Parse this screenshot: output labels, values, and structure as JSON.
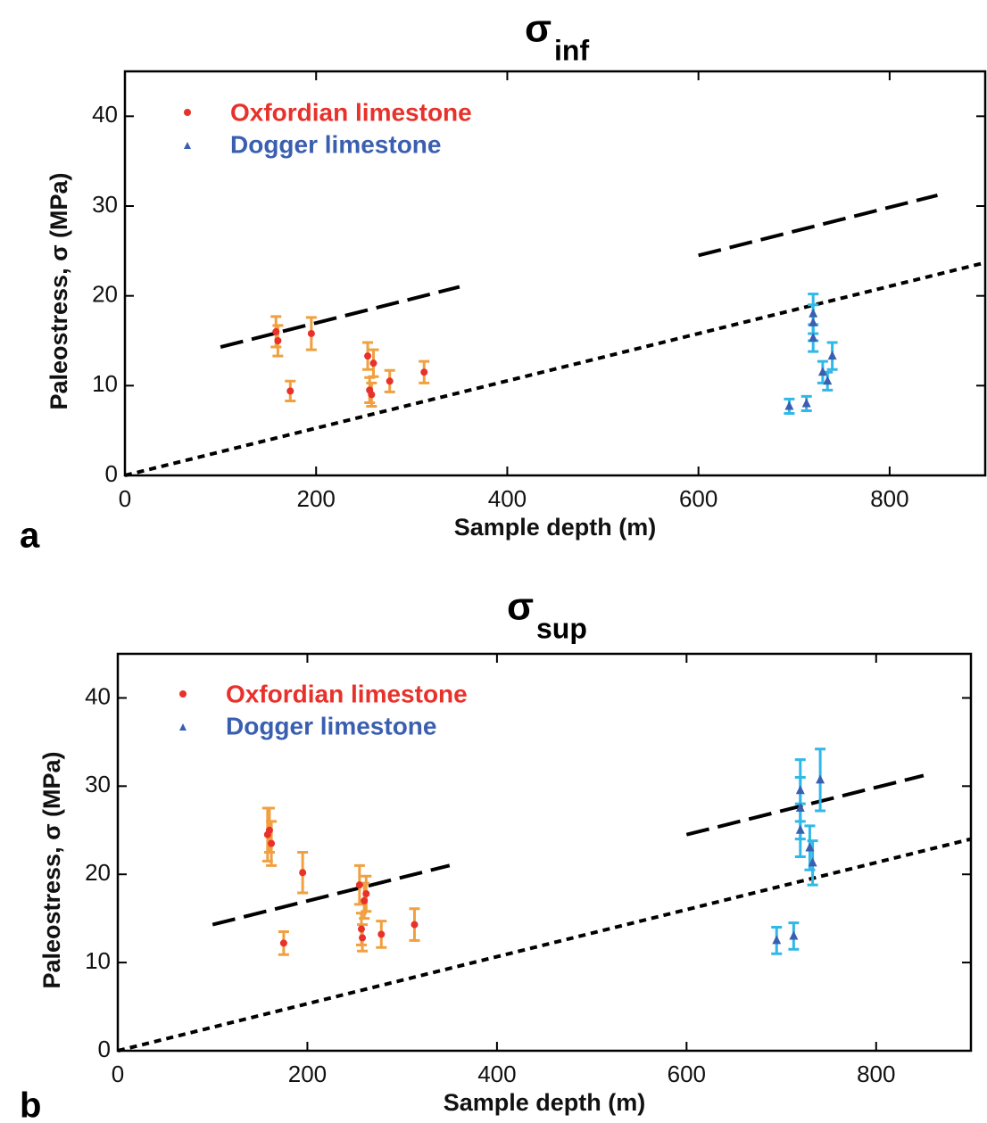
{
  "chart_data": [
    {
      "type": "scatter",
      "panel_label": "a",
      "title": "σ",
      "title_subscript": "inf",
      "x_label": "Sample depth (m)",
      "y_label": "Paleostress, σ (MPa)",
      "xlim": [
        0,
        900
      ],
      "ylim": [
        0,
        45
      ],
      "xticks": [
        0,
        200,
        400,
        600,
        800
      ],
      "yticks": [
        0,
        10,
        20,
        30,
        40
      ],
      "legend": "top-left",
      "series": [
        {
          "name": "Oxfordian limestone",
          "color": "#e8312a",
          "errorbar_color": "#f0a040",
          "marker": "circle",
          "x": [
            158,
            160,
            195,
            173,
            254,
            256,
            258,
            260,
            277,
            313
          ],
          "values": [
            16.0,
            15.0,
            15.8,
            9.4,
            13.3,
            9.5,
            9.0,
            12.5,
            10.5,
            11.5
          ],
          "errors": [
            1.7,
            1.7,
            1.8,
            1.1,
            1.5,
            1.4,
            1.3,
            1.5,
            1.2,
            1.2
          ]
        },
        {
          "name": "Dogger limestone",
          "color": "#3a5fb0",
          "errorbar_color": "#30b8e8",
          "marker": "triangle",
          "x": [
            695,
            713,
            720,
            720,
            720,
            730,
            735,
            740
          ],
          "values": [
            7.7,
            8.0,
            18.0,
            17.0,
            15.3,
            11.5,
            10.5,
            13.3
          ],
          "errors": [
            0.8,
            0.8,
            2.2,
            2.0,
            1.5,
            1.2,
            1.0,
            1.5
          ]
        }
      ],
      "lines": [
        {
          "x": [
            0,
            900
          ],
          "values": [
            0,
            23.7
          ],
          "dash": "short"
        },
        {
          "x": [
            100,
            350
          ],
          "values": [
            14.3,
            21.0
          ],
          "dash": "long"
        },
        {
          "x": [
            600,
            850
          ],
          "values": [
            24.5,
            31.2
          ],
          "dash": "long"
        }
      ]
    },
    {
      "type": "scatter",
      "panel_label": "b",
      "title": "σ",
      "title_subscript": "sup",
      "x_label": "Sample depth (m)",
      "y_label": "Paleostress, σ (MPa)",
      "xlim": [
        0,
        900
      ],
      "ylim": [
        0,
        45
      ],
      "xticks": [
        0,
        200,
        400,
        600,
        800
      ],
      "yticks": [
        0,
        10,
        20,
        30,
        40
      ],
      "legend": "top-left",
      "series": [
        {
          "name": "Oxfordian limestone",
          "color": "#e8312a",
          "errorbar_color": "#f0a040",
          "marker": "circle",
          "x": [
            158,
            160,
            162,
            175,
            195,
            255,
            257,
            258,
            260,
            262,
            278,
            313
          ],
          "values": [
            24.5,
            25.0,
            23.5,
            12.2,
            20.2,
            18.8,
            13.8,
            12.8,
            17.0,
            17.8,
            13.2,
            14.3
          ],
          "errors": [
            3.0,
            2.5,
            2.5,
            1.3,
            2.3,
            2.2,
            1.8,
            1.5,
            2.0,
            2.0,
            1.5,
            1.8
          ]
        },
        {
          "name": "Dogger limestone",
          "color": "#3a5fb0",
          "errorbar_color": "#30b8e8",
          "marker": "triangle",
          "x": [
            695,
            713,
            720,
            720,
            720,
            730,
            733,
            741
          ],
          "values": [
            12.5,
            13.0,
            29.5,
            27.5,
            25.0,
            23.0,
            21.3,
            30.7
          ],
          "errors": [
            1.5,
            1.5,
            3.5,
            3.5,
            3.0,
            2.5,
            2.5,
            3.5
          ]
        }
      ],
      "lines": [
        {
          "x": [
            0,
            900
          ],
          "values": [
            0,
            24.0
          ],
          "dash": "short"
        },
        {
          "x": [
            100,
            350
          ],
          "values": [
            14.3,
            21.0
          ],
          "dash": "long"
        },
        {
          "x": [
            600,
            850
          ],
          "values": [
            24.5,
            31.2
          ],
          "dash": "long"
        }
      ]
    }
  ]
}
